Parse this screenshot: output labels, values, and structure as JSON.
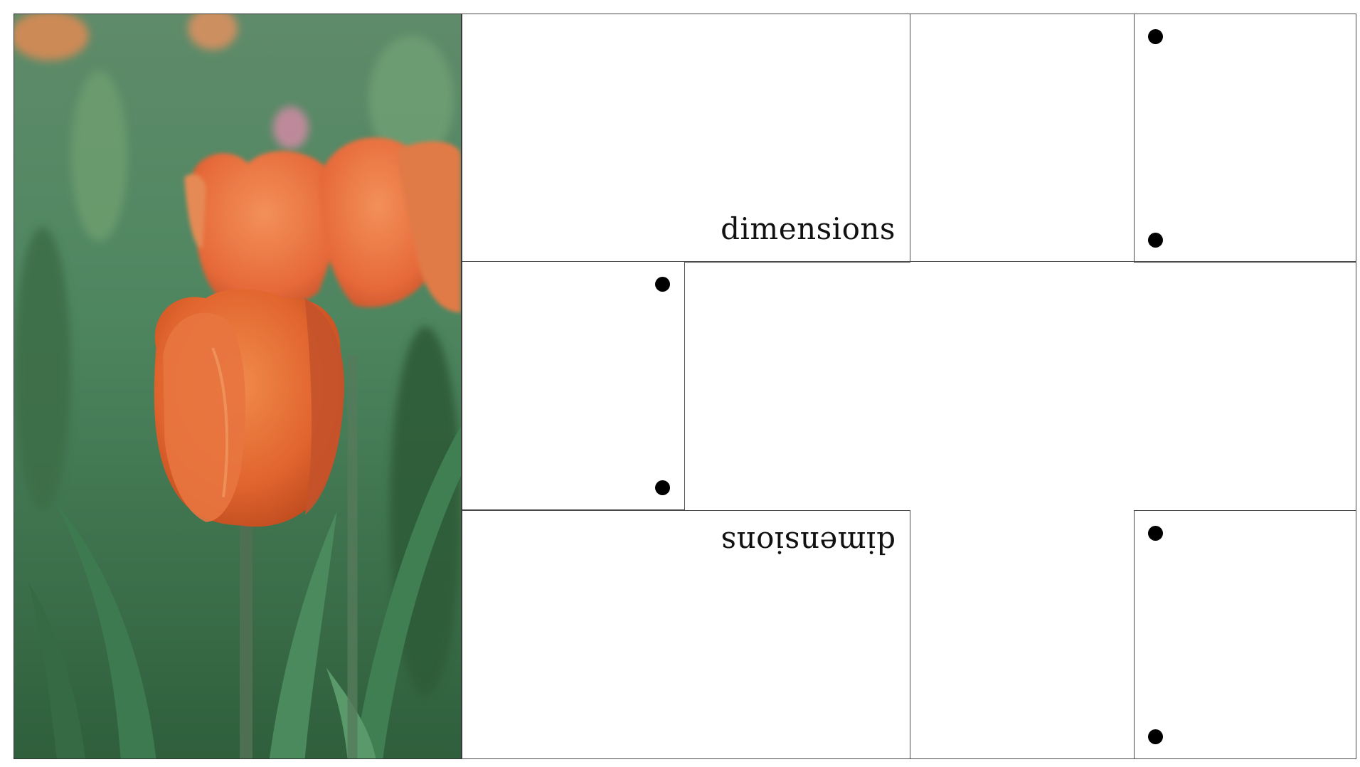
{
  "panels": {
    "top_label": "dimensions",
    "bottom_label": "dimensions"
  },
  "image": {
    "subject": "tulip-photo"
  },
  "colors": {
    "border": "#4a4a4a",
    "dot": "#000000",
    "tulip": "#e8743f",
    "foliage": "#3f7a52"
  }
}
